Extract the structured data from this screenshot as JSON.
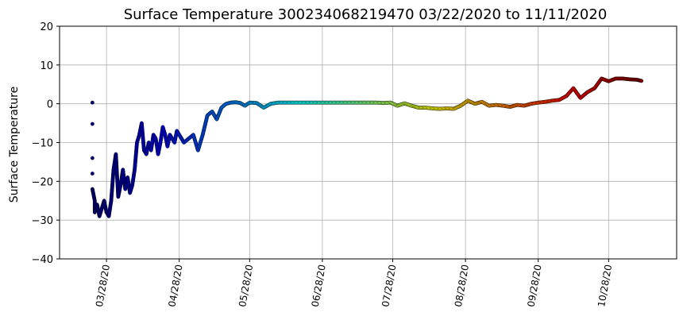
{
  "chart_data": {
    "type": "scatter",
    "title": "Surface Temperature 300234068219470  03/22/2020 to 11/11/2020",
    "xlabel": "",
    "ylabel": "Surface Temperature",
    "x_type": "date",
    "xlim": [
      "2020-03-08",
      "2020-11-26"
    ],
    "ylim": [
      -40,
      20
    ],
    "yticks": [
      -40,
      -30,
      -20,
      -10,
      0,
      10,
      20
    ],
    "xticks": [
      {
        "date": "2020-03-28",
        "label": "03/28/20"
      },
      {
        "date": "2020-04-28",
        "label": "04/28/20"
      },
      {
        "date": "2020-05-28",
        "label": "05/28/20"
      },
      {
        "date": "2020-06-28",
        "label": "06/28/20"
      },
      {
        "date": "2020-07-28",
        "label": "07/28/20"
      },
      {
        "date": "2020-08-28",
        "label": "08/28/20"
      },
      {
        "date": "2020-09-28",
        "label": "09/28/20"
      },
      {
        "date": "2020-10-28",
        "label": "10/28/20"
      }
    ],
    "grid": true,
    "color_by": "time (jet colormap)",
    "colormap": [
      "#00007f",
      "#0000ff",
      "#007fff",
      "#00ffff",
      "#7fff7f",
      "#ffff00",
      "#ff7f00",
      "#ff0000",
      "#7f0000"
    ],
    "series": [
      {
        "x": [
          "2020-03-22",
          "2020-03-22",
          "2020-03-22",
          "2020-03-22",
          "2020-03-22",
          "2020-03-23",
          "2020-03-23",
          "2020-03-24",
          "2020-03-25",
          "2020-03-26",
          "2020-03-27",
          "2020-03-28",
          "2020-03-29",
          "2020-03-30",
          "2020-03-31",
          "2020-04-01",
          "2020-04-02",
          "2020-04-03",
          "2020-04-04",
          "2020-04-05",
          "2020-04-06",
          "2020-04-07",
          "2020-04-08",
          "2020-04-09",
          "2020-04-10",
          "2020-04-11",
          "2020-04-12",
          "2020-04-13",
          "2020-04-14",
          "2020-04-15",
          "2020-04-16",
          "2020-04-17",
          "2020-04-18",
          "2020-04-19",
          "2020-04-20",
          "2020-04-21",
          "2020-04-22",
          "2020-04-23",
          "2020-04-24",
          "2020-04-25",
          "2020-04-26",
          "2020-04-27",
          "2020-04-28",
          "2020-04-29",
          "2020-04-30",
          "2020-05-02",
          "2020-05-04",
          "2020-05-06",
          "2020-05-08",
          "2020-05-10",
          "2020-05-12",
          "2020-05-14",
          "2020-05-16",
          "2020-05-18",
          "2020-05-20",
          "2020-05-22",
          "2020-05-24",
          "2020-05-26",
          "2020-05-28",
          "2020-05-31",
          "2020-06-03",
          "2020-06-06",
          "2020-06-09",
          "2020-06-12",
          "2020-06-15",
          "2020-06-18",
          "2020-06-21",
          "2020-06-24",
          "2020-06-27",
          "2020-06-30",
          "2020-07-03",
          "2020-07-06",
          "2020-07-09",
          "2020-07-12",
          "2020-07-15",
          "2020-07-18",
          "2020-07-21",
          "2020-07-24",
          "2020-07-27",
          "2020-07-30",
          "2020-08-02",
          "2020-08-05",
          "2020-08-08",
          "2020-08-11",
          "2020-08-14",
          "2020-08-17",
          "2020-08-20",
          "2020-08-23",
          "2020-08-26",
          "2020-08-29",
          "2020-09-01",
          "2020-09-04",
          "2020-09-07",
          "2020-09-10",
          "2020-09-13",
          "2020-09-16",
          "2020-09-19",
          "2020-09-22",
          "2020-09-25",
          "2020-09-28",
          "2020-10-01",
          "2020-10-04",
          "2020-10-07",
          "2020-10-10",
          "2020-10-13",
          "2020-10-16",
          "2020-10-19",
          "2020-10-22",
          "2020-10-25",
          "2020-10-28",
          "2020-10-31",
          "2020-11-03",
          "2020-11-06",
          "2020-11-09",
          "2020-11-11"
        ],
        "y": [
          0.3,
          -5.2,
          -14,
          -18,
          -22,
          -25,
          -28,
          -26,
          -29,
          -27,
          -25,
          -28,
          -29,
          -25,
          -17,
          -13,
          -24,
          -21,
          -17,
          -22,
          -19,
          -23,
          -21,
          -17,
          -10,
          -8,
          -5,
          -12,
          -13,
          -10,
          -12,
          -8,
          -9,
          -13,
          -10,
          -6,
          -8,
          -11,
          -8,
          -9,
          -10,
          -7,
          -8,
          -9,
          -10,
          -9,
          -8,
          -12,
          -8,
          -3,
          -2,
          -4,
          -1,
          0,
          0.3,
          0.4,
          0.2,
          -0.5,
          0.3,
          0.2,
          -1,
          0,
          0.3,
          0.3,
          0.3,
          0.3,
          0.3,
          0.3,
          0.3,
          0.3,
          0.3,
          0.3,
          0.3,
          0.3,
          0.3,
          0.3,
          0.3,
          0.2,
          0.3,
          -0.5,
          0.1,
          -0.5,
          -1,
          -1,
          -1.2,
          -1.3,
          -1.2,
          -1.3,
          -0.5,
          0.8,
          0,
          0.5,
          -0.5,
          -0.3,
          -0.5,
          -0.8,
          -0.3,
          -0.5,
          0,
          0.3,
          0.5,
          0.8,
          1,
          2,
          4,
          1.5,
          3,
          4,
          6.5,
          5.8,
          6.5,
          6.5,
          6.3,
          6.2,
          5.9
        ]
      }
    ]
  }
}
